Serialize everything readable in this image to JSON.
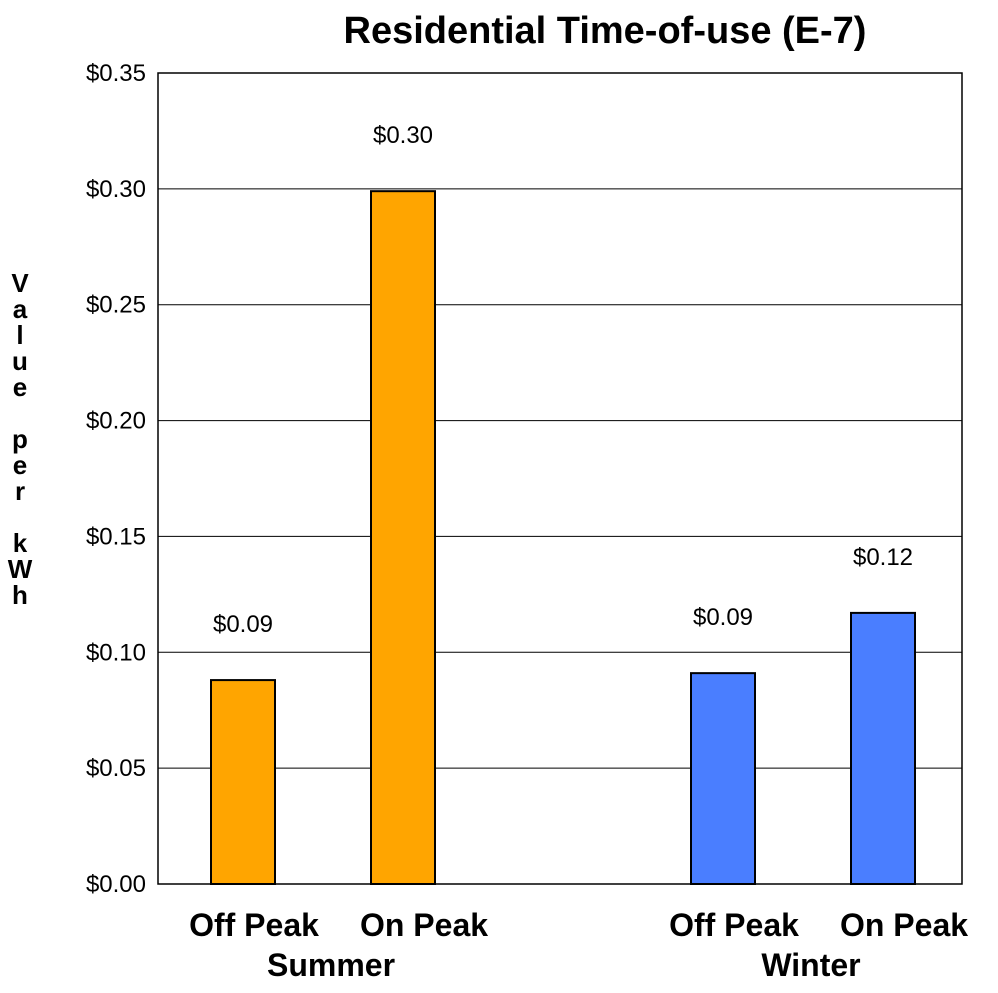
{
  "chart_data": {
    "type": "bar",
    "title": "Residential Time-of-use (E-7)",
    "ylabel": "Value per kWh",
    "ylabel_lines": [
      "V",
      "a",
      "l",
      "u",
      "e",
      "",
      "p",
      "e",
      "r",
      "",
      "k",
      "W",
      "h"
    ],
    "xlabel": "",
    "ylim": [
      0,
      0.35
    ],
    "y_ticks": [
      {
        "value": 0.0,
        "label": "$0.00"
      },
      {
        "value": 0.05,
        "label": "$0.05"
      },
      {
        "value": 0.1,
        "label": "$0.10"
      },
      {
        "value": 0.15,
        "label": "$0.15"
      },
      {
        "value": 0.2,
        "label": "$0.20"
      },
      {
        "value": 0.25,
        "label": "$0.25"
      },
      {
        "value": 0.3,
        "label": "$0.30"
      },
      {
        "value": 0.35,
        "label": "$0.35"
      }
    ],
    "grid": true,
    "bars": [
      {
        "group": "Summer",
        "category": "Off Peak",
        "value": 0.088,
        "label": "$0.09",
        "color": "#FFA500"
      },
      {
        "group": "Summer",
        "category": "On Peak",
        "value": 0.299,
        "label": "$0.30",
        "color": "#FFA500"
      },
      {
        "group": "Winter",
        "category": "Off Peak",
        "value": 0.091,
        "label": "$0.09",
        "color": "#4A7EFF"
      },
      {
        "group": "Winter",
        "category": "On Peak",
        "value": 0.117,
        "label": "$0.12",
        "color": "#4A7EFF"
      }
    ],
    "groups": [
      "Summer",
      "Winter"
    ]
  }
}
